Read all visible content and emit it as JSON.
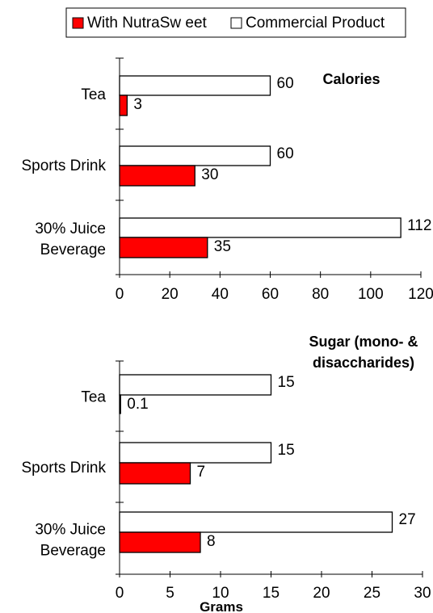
{
  "legend": {
    "items": [
      {
        "label": "With NutraSw eet",
        "color": "#ff0000"
      },
      {
        "label": "Commercial Product",
        "color": "#ffffff"
      }
    ]
  },
  "chart_data": [
    {
      "type": "bar",
      "orientation": "horizontal",
      "title": "Calories",
      "categories": [
        "Tea",
        "Sports Drink",
        "30% Juice\nBeverage"
      ],
      "series": [
        {
          "name": "Commercial Product",
          "values": [
            60,
            60,
            112
          ],
          "labels": [
            "60",
            "60",
            "112"
          ],
          "color": "#ffffff"
        },
        {
          "name": "With NutraSw eet",
          "values": [
            3,
            30,
            35
          ],
          "labels": [
            "3",
            "30",
            "35"
          ],
          "color": "#ff0000"
        }
      ],
      "xlim": [
        0,
        120
      ],
      "xticks": [
        "0",
        "20",
        "40",
        "60",
        "80",
        "100",
        "120"
      ],
      "xlabel": "",
      "grid": false
    },
    {
      "type": "bar",
      "orientation": "horizontal",
      "title": "Sugar (mono- &\ndisaccharides)",
      "categories": [
        "Tea",
        "Sports Drink",
        "30% Juice\nBeverage"
      ],
      "series": [
        {
          "name": "Commercial Product",
          "values": [
            15,
            15,
            27
          ],
          "labels": [
            "15",
            "15",
            "27"
          ],
          "color": "#ffffff"
        },
        {
          "name": "With NutraSw eet",
          "values": [
            0.1,
            7,
            8
          ],
          "labels": [
            "0.1",
            "7",
            "8"
          ],
          "color": "#ff0000"
        }
      ],
      "xlim": [
        0,
        30
      ],
      "xticks": [
        "0",
        "5",
        "10",
        "15",
        "20",
        "25",
        "30"
      ],
      "xlabel": "Grams",
      "grid": false
    }
  ]
}
